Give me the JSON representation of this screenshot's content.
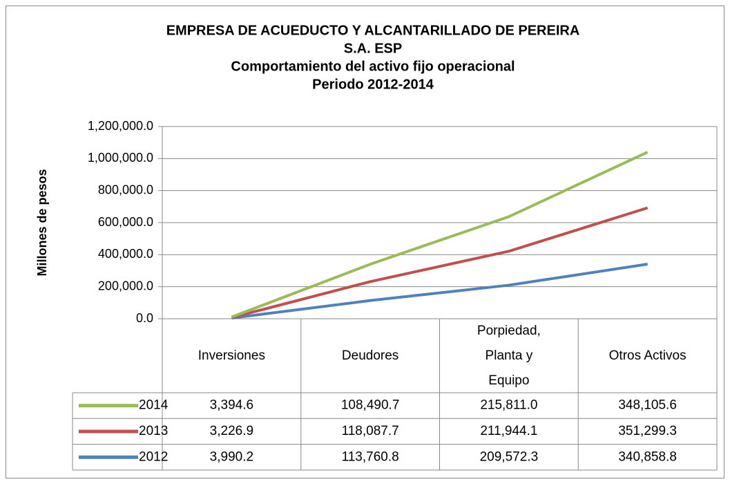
{
  "chart_data": {
    "type": "stacked-line",
    "title": [
      "EMPRESA DE ACUEDUCTO  Y ALCANTARILLADO  DE PEREIRA",
      "S.A. ESP",
      "Comportamiento  del activo  fijo operacional",
      "Periodo 2012-2014"
    ],
    "y_label": "Millones de pesos",
    "categories": [
      "Inversiones",
      "Deudores",
      "Porpiedad, Planta y Equipo",
      "Otros Activos"
    ],
    "series": [
      {
        "name": "2012",
        "color": "#4f81bd",
        "values": [
          3990.2,
          113760.8,
          209572.3,
          340858.8
        ],
        "value_labels": [
          "3,990.2",
          "113,760.8",
          "209,572.3",
          "340,858.8"
        ]
      },
      {
        "name": "2013",
        "color": "#c0504d",
        "values": [
          3226.9,
          118087.7,
          211944.1,
          351299.3
        ],
        "value_labels": [
          "3,226.9",
          "118,087.7",
          "211,944.1",
          "351,299.3"
        ]
      },
      {
        "name": "2014",
        "color": "#9bbb59",
        "values": [
          3394.6,
          108490.7,
          215811.0,
          348105.6
        ],
        "value_labels": [
          "3,394.6",
          "108,490.7",
          "215,811.0",
          "348,105.6"
        ]
      }
    ],
    "ylim": [
      0,
      1200000
    ],
    "yticks": [
      {
        "value": 0,
        "label": "0.0"
      },
      {
        "value": 200000,
        "label": "200,000.0"
      },
      {
        "value": 400000,
        "label": "400,000.0"
      },
      {
        "value": 600000,
        "label": "600,000.0"
      },
      {
        "value": 800000,
        "label": "800,000.0"
      },
      {
        "value": 1000000,
        "label": "1,000,000.0"
      },
      {
        "value": 1200000,
        "label": "1,200,000.0"
      }
    ],
    "grid": true,
    "stacked": true
  }
}
